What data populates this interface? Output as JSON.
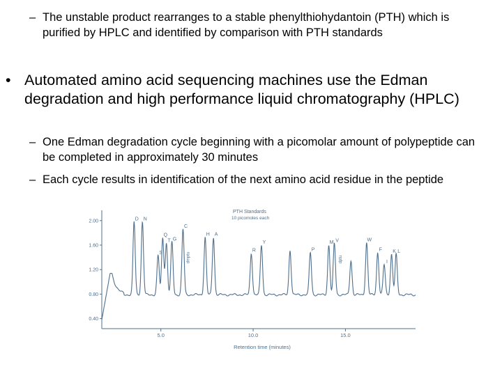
{
  "slide": {
    "sub_point_1": "The unstable product rearranges to a stable phenylthiohydantoin (PTH) which is purified by HPLC and identified by comparison with PTH standards",
    "bullet_1": "Automated amino acid sequencing machines use the Edman degradation and high performance liquid chromatography (HPLC)",
    "sub_point_2": "One Edman degradation cycle beginning with a picomolar amount of polypeptide can be completed in approximately 30 minutes",
    "sub_point_3": "Each cycle results in identification of the next amino acid residue in the peptide",
    "dash_glyph": "–",
    "bullet_glyph": "•"
  },
  "chart_data": {
    "type": "line",
    "title": "PTH Standards",
    "subtitle": "10 picomoles each",
    "xlabel": "Retention time (minutes)",
    "ylabel": "",
    "xlim": [
      1.8,
      18.8
    ],
    "ylim": [
      0.35,
      2.1
    ],
    "x_ticks": [
      "5.0",
      "10.0",
      "15.0"
    ],
    "y_ticks": [
      "2.00",
      "1.60",
      "1.20",
      "0.80",
      "0.40"
    ],
    "baseline": 0.79,
    "grid": false,
    "line_color": "#4e6f8e",
    "peaks": [
      {
        "label": "D",
        "x": 3.55,
        "y": 1.98
      },
      {
        "label": "N",
        "x": 4.0,
        "y": 1.98
      },
      {
        "label": "S",
        "x": 4.85,
        "y": 1.43
      },
      {
        "label": "Q",
        "x": 5.1,
        "y": 1.72
      },
      {
        "label": "T",
        "x": 5.3,
        "y": 1.63
      },
      {
        "label": "G",
        "x": 5.6,
        "y": 1.65
      },
      {
        "label": "C",
        "x": 6.2,
        "y": 1.86
      },
      {
        "label": "H",
        "x": 7.4,
        "y": 1.73
      },
      {
        "label": "A",
        "x": 7.85,
        "y": 1.73
      },
      {
        "label": "R",
        "x": 9.9,
        "y": 1.47
      },
      {
        "label": "Y",
        "x": 10.45,
        "y": 1.6
      },
      {
        "label": "P",
        "x": 13.1,
        "y": 1.48
      },
      {
        "label": "M",
        "x": 14.1,
        "y": 1.6
      },
      {
        "label": "V",
        "x": 14.4,
        "y": 1.63
      },
      {
        "label": "W",
        "x": 16.15,
        "y": 1.64
      },
      {
        "label": "F",
        "x": 16.75,
        "y": 1.48
      },
      {
        "label": "I",
        "x": 17.1,
        "y": 1.28
      },
      {
        "label": "K",
        "x": 17.5,
        "y": 1.45
      },
      {
        "label": "L",
        "x": 17.75,
        "y": 1.45
      }
    ],
    "minor_peaks": [
      {
        "x": 12.0,
        "y": 1.52
      },
      {
        "x": 15.3,
        "y": 1.35
      }
    ],
    "annotations": [
      {
        "text": "dmptu",
        "x": 6.55
      },
      {
        "text": "dptu",
        "x": 14.8
      }
    ]
  }
}
